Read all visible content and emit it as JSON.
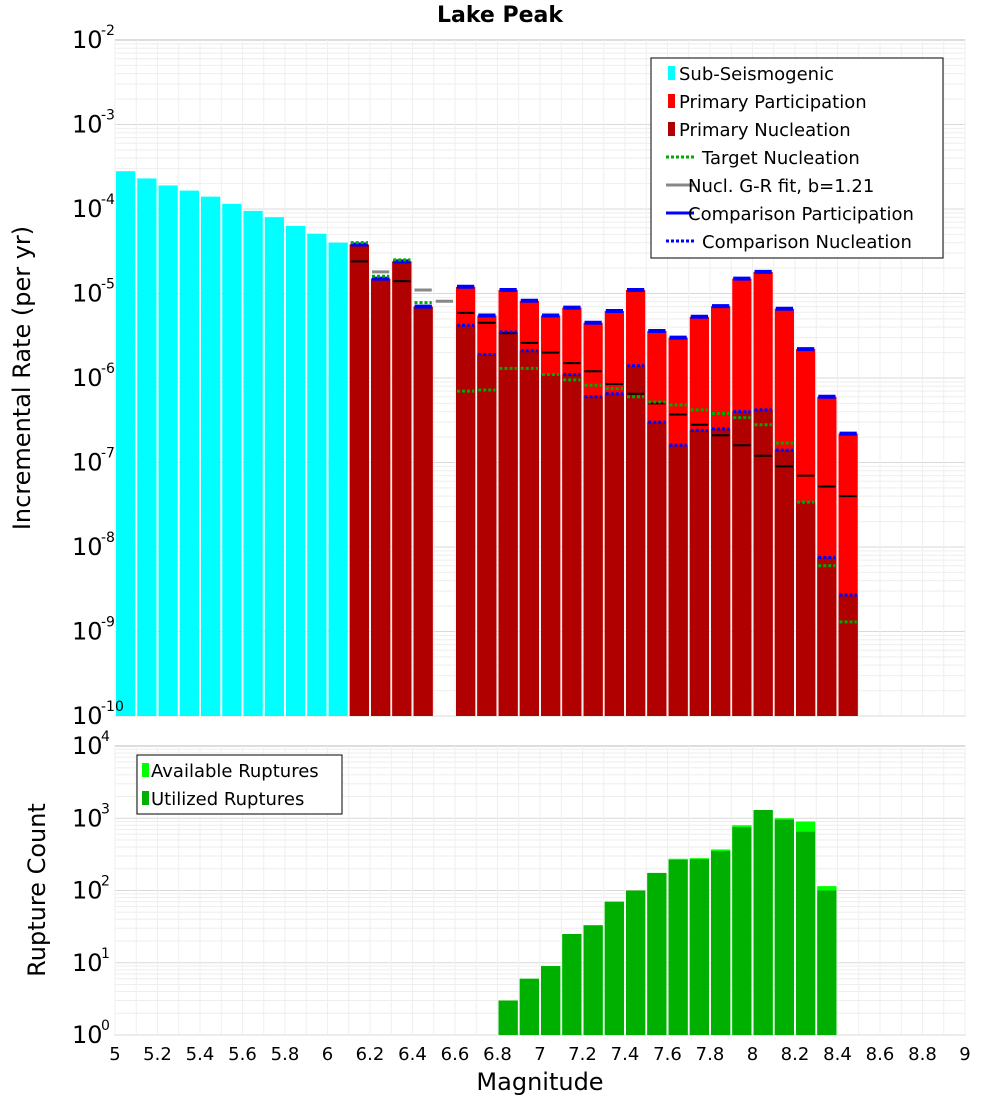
{
  "chart_data": [
    {
      "type": "bar",
      "title": "Lake Peak",
      "xlabel": "Magnitude",
      "ylabel": "Incremental Rate (per yr)",
      "yscale": "log",
      "ylim_exponents": [
        -10,
        -2
      ],
      "xlim": [
        5.0,
        9.0
      ],
      "bin_width": 0.1,
      "legend": {
        "placement": "top-right",
        "entries": [
          {
            "label": "Sub-Seismogenic",
            "style": "bar",
            "color": "#00ffff"
          },
          {
            "label": "Primary Participation",
            "style": "bar",
            "color": "#ff0000"
          },
          {
            "label": "Primary Nucleation",
            "style": "bar",
            "color": "#b00000"
          },
          {
            "label": "Target Nucleation",
            "style": "dotted",
            "color": "#00aa00"
          },
          {
            "label": "Nucl. G-R fit, b=1.21",
            "style": "solid",
            "color": "#888888"
          },
          {
            "label": "Comparison Participation",
            "style": "solid",
            "color": "#0000ff"
          },
          {
            "label": "Comparison Nucleation",
            "style": "dotted",
            "color": "#0000ff"
          }
        ]
      },
      "series": [
        {
          "name": "Sub-Seismogenic",
          "color": "#00ffff",
          "x": [
            5.05,
            5.15,
            5.25,
            5.35,
            5.45,
            5.55,
            5.65,
            5.75,
            5.85,
            5.95,
            6.05
          ],
          "values": [
            0.00028,
            0.00023,
            0.00019,
            0.000165,
            0.00014,
            0.000115,
            9.5e-05,
            8e-05,
            6.3e-05,
            5.1e-05,
            4e-05
          ]
        },
        {
          "name": "Primary Participation",
          "color": "#ff0000",
          "x": [
            6.15,
            6.25,
            6.35,
            6.45,
            6.65,
            6.75,
            6.85,
            6.95,
            7.05,
            7.15,
            7.25,
            7.35,
            7.45,
            7.55,
            7.65,
            7.75,
            7.85,
            7.95,
            8.05,
            8.15,
            8.25,
            8.35,
            8.45
          ],
          "values": [
            3.8e-05,
            1.5e-05,
            2.4e-05,
            7e-06,
            1.2e-05,
            5.5e-06,
            1.1e-05,
            8.2e-06,
            5.5e-06,
            6.8e-06,
            4.5e-06,
            6.2e-06,
            1.1e-05,
            3.6e-06,
            3e-06,
            5.3e-06,
            7.1e-06,
            1.5e-05,
            1.8e-05,
            6.6e-06,
            2.2e-06,
            6e-07,
            2.2e-07
          ]
        },
        {
          "name": "Primary Nucleation",
          "color": "#b00000",
          "x": [
            6.15,
            6.25,
            6.35,
            6.45,
            6.65,
            6.75,
            6.85,
            6.95,
            7.05,
            7.15,
            7.25,
            7.35,
            7.45,
            7.55,
            7.65,
            7.75,
            7.85,
            7.95,
            8.05,
            8.15,
            8.25,
            8.35,
            8.45
          ],
          "values": [
            3.8e-05,
            1.5e-05,
            2.4e-05,
            7e-06,
            4.2e-06,
            1.9e-06,
            3.5e-06,
            2.1e-06,
            1.1e-06,
            1.1e-06,
            6e-07,
            6.5e-07,
            1.4e-06,
            3e-07,
            1.6e-07,
            2.4e-07,
            2.5e-07,
            4e-07,
            4.2e-07,
            1.4e-07,
            3.4e-08,
            7.5e-09,
            2.7e-09
          ]
        },
        {
          "name": "Target Nucleation",
          "color": "#00aa00",
          "x": [
            6.15,
            6.25,
            6.35,
            6.45,
            6.65,
            6.75,
            6.85,
            6.95,
            7.05,
            7.15,
            7.25,
            7.35,
            7.45,
            7.55,
            7.65,
            7.75,
            7.85,
            7.95,
            8.05,
            8.15,
            8.25,
            8.35,
            8.45
          ],
          "values": [
            4e-05,
            1.6e-05,
            2.5e-05,
            7.8e-06,
            7e-07,
            7.2e-07,
            1.3e-06,
            1.3e-06,
            1.1e-06,
            9.5e-07,
            8.2e-07,
            7.5e-07,
            6e-07,
            5.2e-07,
            4.8e-07,
            4.2e-07,
            3.8e-07,
            3.4e-07,
            2.8e-07,
            1.7e-07,
            3.4e-08,
            6e-09,
            1.3e-09
          ]
        },
        {
          "name": "Nucl. G-R fit, b=1.21",
          "color": "#888888",
          "x": [
            6.15,
            6.25,
            6.35,
            6.45,
            6.55,
            6.65,
            6.75,
            6.85,
            6.95,
            7.05,
            7.15,
            7.25,
            7.35,
            7.45,
            7.55,
            7.65,
            7.75,
            7.85,
            7.95,
            8.05,
            8.15,
            8.25,
            8.35,
            8.45
          ],
          "values": [
            2.4e-05,
            1.8e-05,
            1.4e-05,
            1.1e-05,
            8.1e-06,
            5.9e-06,
            4.5e-06,
            3.4e-06,
            2.6e-06,
            2e-06,
            1.5e-06,
            1.2e-06,
            8.5e-07,
            6.5e-07,
            5e-07,
            3.7e-07,
            2.8e-07,
            2.1e-07,
            1.6e-07,
            1.2e-07,
            9e-08,
            7e-08,
            5.2e-08,
            4e-08
          ]
        },
        {
          "name": "Comparison Participation",
          "color": "#0000ff",
          "x": [
            6.15,
            6.25,
            6.35,
            6.45,
            6.65,
            6.75,
            6.85,
            6.95,
            7.05,
            7.15,
            7.25,
            7.35,
            7.45,
            7.55,
            7.65,
            7.75,
            7.85,
            7.95,
            8.05,
            8.15,
            8.25,
            8.35,
            8.45
          ],
          "values": [
            3.8e-05,
            1.5e-05,
            2.4e-05,
            7e-06,
            1.2e-05,
            5.5e-06,
            1.1e-05,
            8.2e-06,
            5.5e-06,
            6.8e-06,
            4.5e-06,
            6.2e-06,
            1.1e-05,
            3.6e-06,
            3e-06,
            5.3e-06,
            7.1e-06,
            1.5e-05,
            1.8e-05,
            6.6e-06,
            2.2e-06,
            6e-07,
            2.2e-07
          ]
        },
        {
          "name": "Comparison Nucleation",
          "color": "#0000ff",
          "x": [
            6.15,
            6.25,
            6.35,
            6.45,
            6.65,
            6.75,
            6.85,
            6.95,
            7.05,
            7.15,
            7.25,
            7.35,
            7.45,
            7.55,
            7.65,
            7.75,
            7.85,
            7.95,
            8.05,
            8.15,
            8.25,
            8.35,
            8.45
          ],
          "values": [
            3.8e-05,
            1.5e-05,
            2.4e-05,
            7e-06,
            4.2e-06,
            1.9e-06,
            3.5e-06,
            2.1e-06,
            1.1e-06,
            1.1e-06,
            6e-07,
            6.5e-07,
            1.4e-06,
            3e-07,
            1.6e-07,
            2.4e-07,
            2.5e-07,
            4e-07,
            4.2e-07,
            1.4e-07,
            3.4e-08,
            7.5e-09,
            2.7e-09
          ]
        }
      ]
    },
    {
      "type": "bar",
      "title": "",
      "xlabel": "Magnitude",
      "ylabel": "Rupture Count",
      "yscale": "log",
      "ylim_exponents": [
        0,
        4
      ],
      "xlim": [
        5.0,
        9.0
      ],
      "bin_width": 0.1,
      "x_ticks": [
        "5",
        "5.2",
        "5.4",
        "5.6",
        "5.8",
        "6",
        "6.2",
        "6.4",
        "6.6",
        "6.8",
        "7",
        "7.2",
        "7.4",
        "7.6",
        "7.8",
        "8",
        "8.2",
        "8.4",
        "8.6",
        "8.8",
        "9"
      ],
      "legend": {
        "placement": "top-left",
        "entries": [
          {
            "label": "Available Ruptures",
            "color": "#00ff00"
          },
          {
            "label": "Utilized Ruptures",
            "color": "#00b000"
          }
        ]
      },
      "series": [
        {
          "name": "Available Ruptures",
          "color": "#00ff00",
          "x": [
            6.35,
            6.75,
            6.85,
            6.95,
            7.05,
            7.15,
            7.25,
            7.35,
            7.45,
            7.55,
            7.65,
            7.75,
            7.85,
            7.95,
            8.05,
            8.15,
            8.25,
            8.35
          ],
          "values": [
            1,
            1,
            3,
            6,
            9,
            25,
            33,
            70,
            100,
            175,
            275,
            280,
            370,
            800,
            1300,
            1000,
            900,
            115
          ]
        },
        {
          "name": "Utilized Ruptures",
          "color": "#00b000",
          "x": [
            6.35,
            6.75,
            6.85,
            6.95,
            7.05,
            7.15,
            7.25,
            7.35,
            7.45,
            7.55,
            7.65,
            7.75,
            7.85,
            7.95,
            8.05,
            8.15,
            8.25,
            8.35
          ],
          "values": [
            1,
            1,
            3,
            6,
            9,
            25,
            33,
            70,
            100,
            175,
            265,
            270,
            350,
            750,
            1300,
            950,
            650,
            100
          ]
        }
      ]
    }
  ]
}
